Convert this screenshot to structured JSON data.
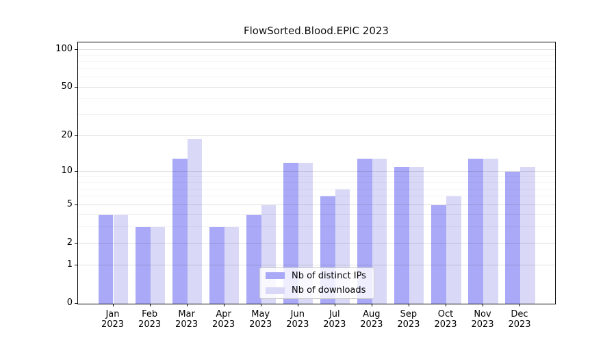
{
  "chart_data": {
    "type": "bar",
    "title": "FlowSorted.Blood.EPIC 2023",
    "categories": [
      "Jan",
      "Feb",
      "Mar",
      "Apr",
      "May",
      "Jun",
      "Jul",
      "Aug",
      "Sep",
      "Oct",
      "Nov",
      "Dec"
    ],
    "x_year_label": "2023",
    "series": [
      {
        "name": "Nb of distinct IPs",
        "color": "#a9a9f7",
        "values": [
          4,
          3,
          13,
          3,
          4,
          12,
          6,
          13,
          11,
          5,
          13,
          10
        ]
      },
      {
        "name": "Nb of downloads",
        "color": "#d9d9f7",
        "values": [
          4,
          3,
          19,
          3,
          5,
          12,
          7,
          13,
          11,
          6,
          13,
          11
        ]
      }
    ],
    "xlabel": "",
    "ylabel": "",
    "y_scale": "log1p",
    "ylim": [
      0,
      114
    ],
    "y_major_ticks": [
      0,
      1,
      2,
      5,
      10,
      20,
      50,
      100
    ],
    "y_minor_ticks": [
      3,
      4,
      6,
      7,
      8,
      9,
      30,
      40,
      60,
      70,
      80,
      90
    ],
    "grid": true,
    "legend_position": "inside-bottom-center",
    "colors": {
      "axis": "#000000",
      "background": "#ffffff",
      "major_grid": "rgba(0,0,0,0.13)",
      "minor_grid": "rgba(0,0,0,0.05)",
      "legend_border": "#cccccc"
    }
  }
}
